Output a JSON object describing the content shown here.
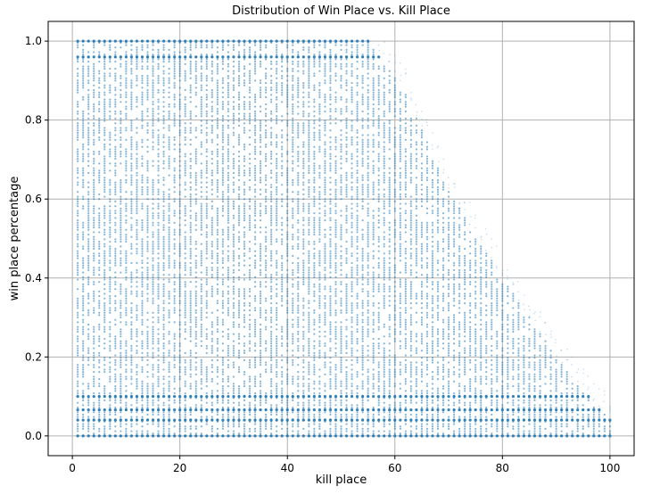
{
  "chart_data": {
    "type": "scatter",
    "title": "Distribution of Win Place vs. Kill Place",
    "xlabel": "kill place",
    "ylabel": "win place percentage",
    "xlim": [
      -4.5,
      104.5
    ],
    "ylim": [
      -0.05,
      1.05
    ],
    "xticks": [
      0,
      20,
      40,
      60,
      80,
      100
    ],
    "yticks": [
      0.0,
      0.2,
      0.4,
      0.6,
      0.8,
      1.0
    ],
    "xtick_labels": [
      "0",
      "20",
      "40",
      "60",
      "80",
      "100"
    ],
    "ytick_labels": [
      "0.0",
      "0.2",
      "0.4",
      "0.6",
      "0.8",
      "1.0"
    ],
    "grid": true,
    "marker_color": "#1f77b4",
    "x_range": [
      1,
      100
    ],
    "upper_envelope": [
      {
        "x": 1,
        "y": 1.0
      },
      {
        "x": 55,
        "y": 1.0
      },
      {
        "x": 62,
        "y": 0.87
      },
      {
        "x": 70,
        "y": 0.62
      },
      {
        "x": 80,
        "y": 0.4
      },
      {
        "x": 90,
        "y": 0.2
      },
      {
        "x": 95,
        "y": 0.11
      },
      {
        "x": 100,
        "y": 0.04
      }
    ],
    "dense_bands_y": [
      0.0,
      0.04,
      0.066,
      0.1,
      0.96,
      1.0
    ]
  }
}
